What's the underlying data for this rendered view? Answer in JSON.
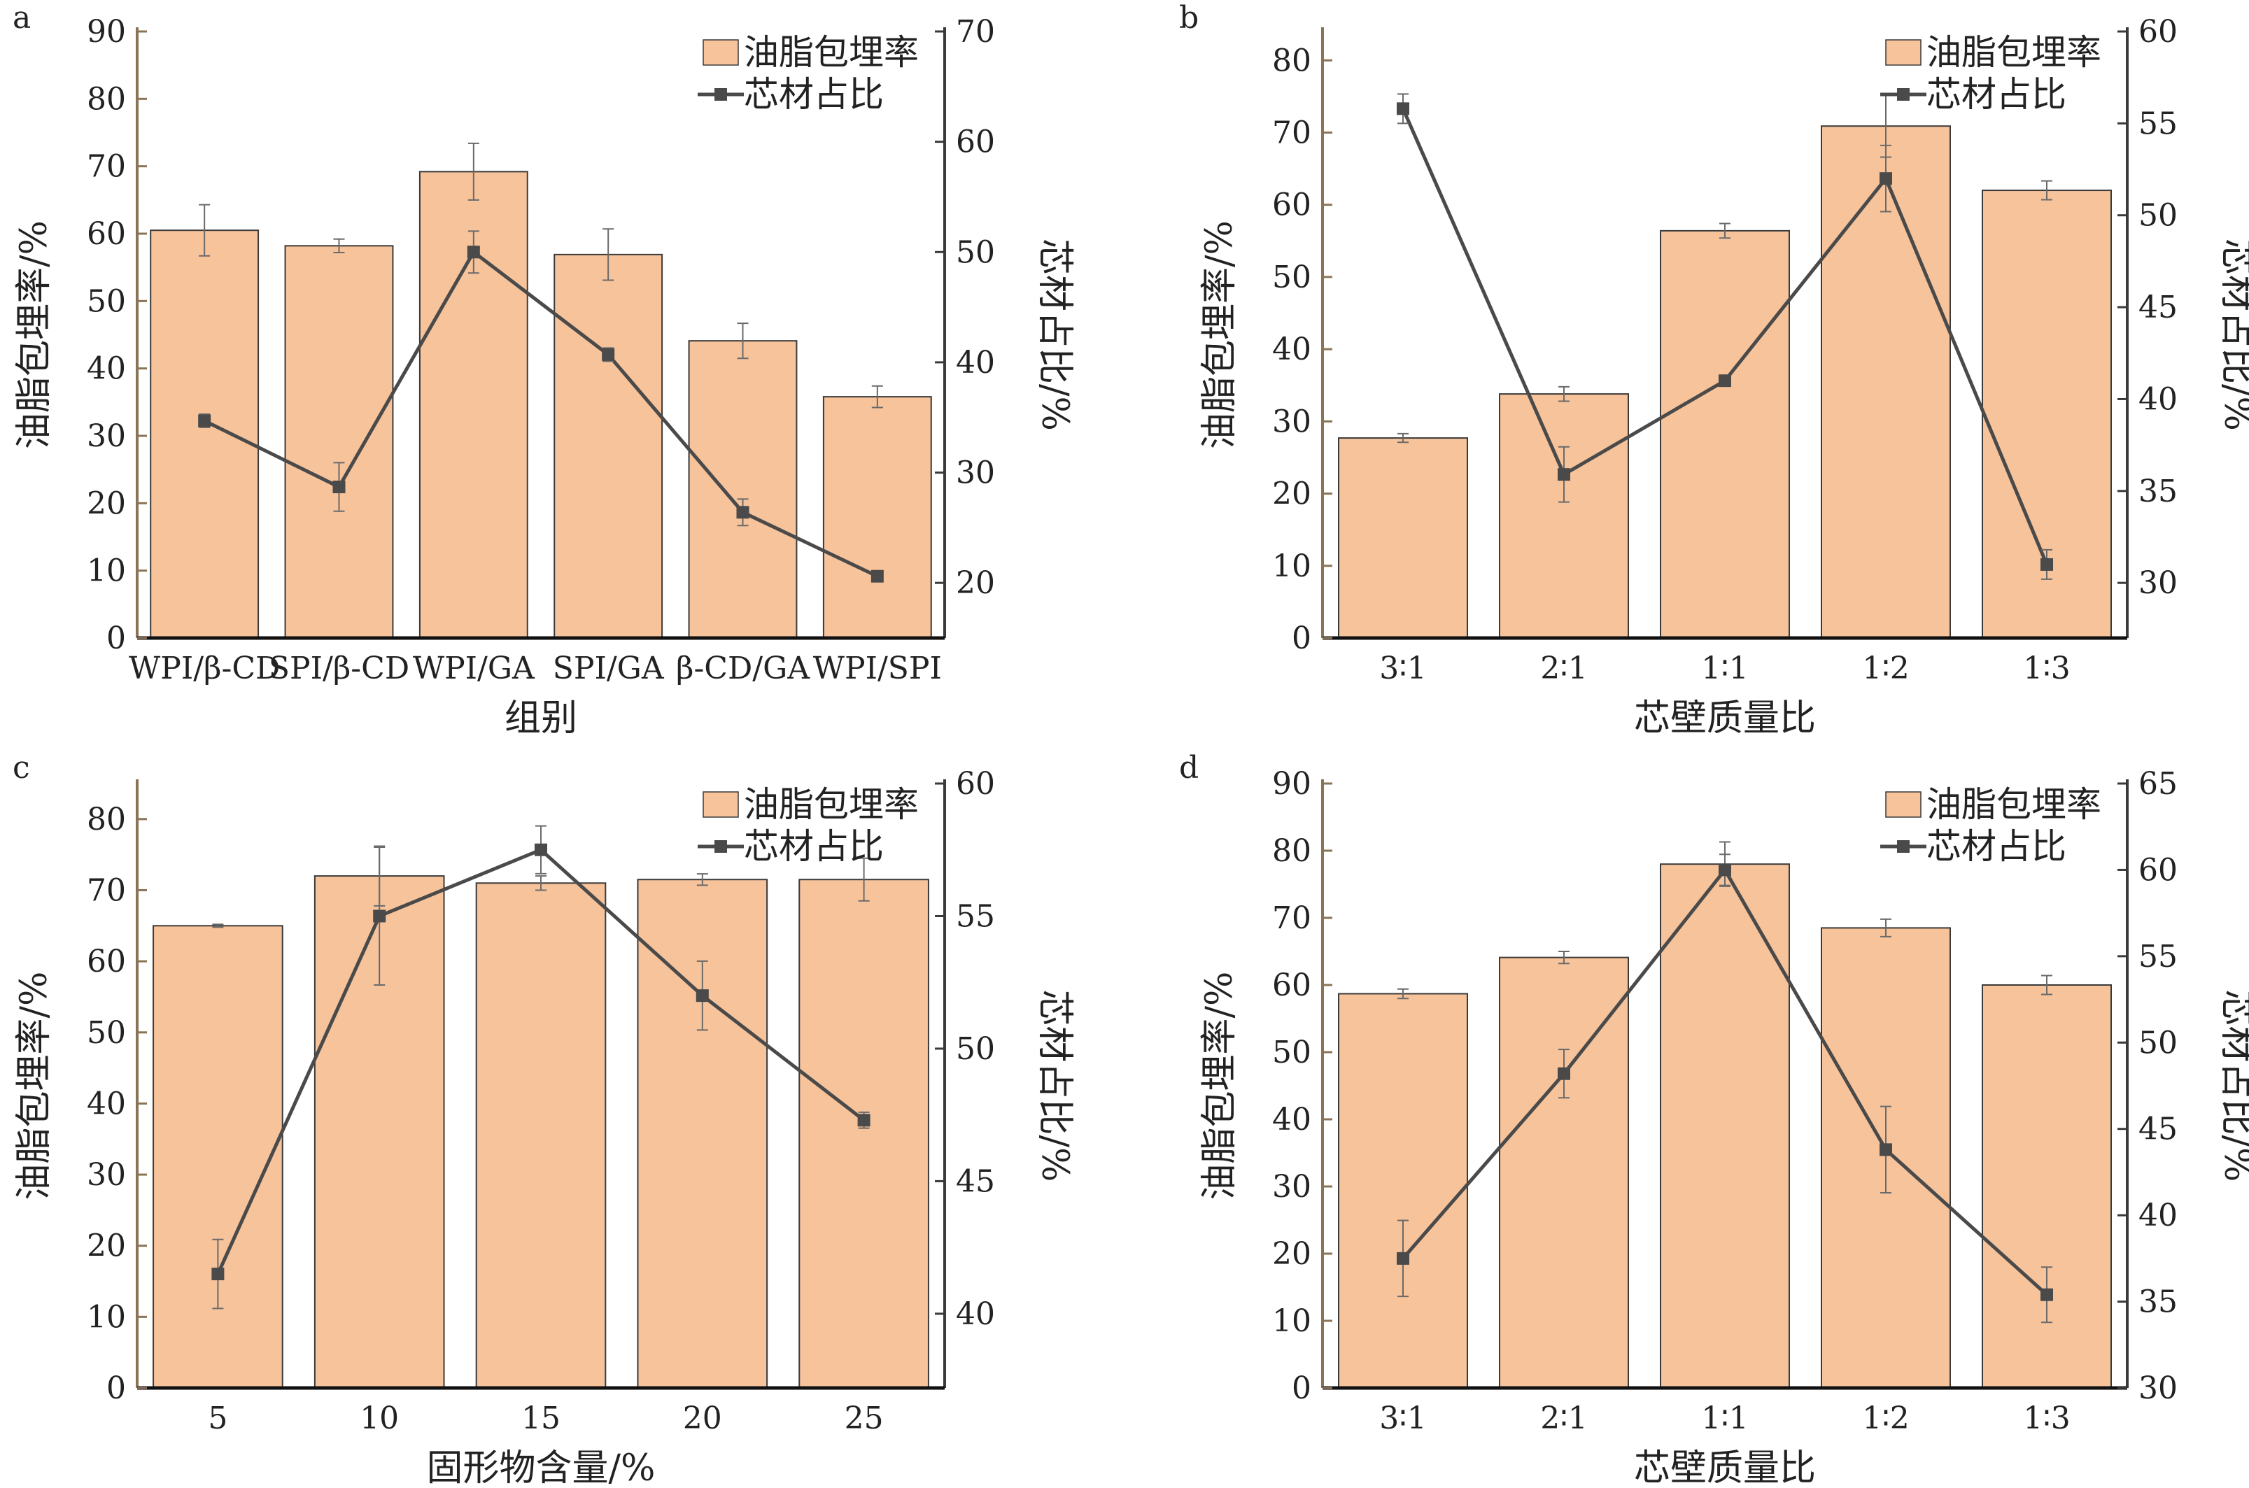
{
  "chart_data": [
    {
      "type": "bar",
      "panel_label": "a",
      "categories": [
        "WPI/β-CD",
        "SPI/β-CD",
        "WPI/GA",
        "SPI/GA",
        "β-CD/GA",
        "WPI/SPI"
      ],
      "series": [
        {
          "name": "油脂包埋率",
          "type": "bar",
          "axis": "left",
          "values": [
            60.5,
            58.2,
            69.2,
            56.9,
            44.1,
            35.8
          ],
          "errors": [
            3.8,
            1.0,
            4.2,
            3.8,
            2.6,
            1.6
          ]
        },
        {
          "name": "芯材占比",
          "type": "line",
          "axis": "right",
          "values": [
            34.7,
            28.7,
            50.0,
            40.7,
            26.4,
            20.6
          ],
          "errors": [
            0.6,
            2.2,
            1.9,
            0.6,
            1.2,
            0.0
          ]
        }
      ],
      "xlabel": "组别",
      "ylabel": "油脂包埋率/%",
      "y2label": "芯材占比/%",
      "ylim": [
        0,
        90
      ],
      "yticks": [
        0,
        10,
        20,
        30,
        40,
        50,
        60,
        70,
        80,
        90
      ],
      "y2lim": [
        15,
        70
      ],
      "y2ticks": [
        20,
        30,
        40,
        50,
        60,
        70
      ],
      "legend": "top-right",
      "grid": false
    },
    {
      "type": "bar",
      "panel_label": "b",
      "categories": [
        "3∶1",
        "2∶1",
        "1∶1",
        "1∶2",
        "1∶3"
      ],
      "series": [
        {
          "name": "油脂包埋率",
          "type": "bar",
          "axis": "left",
          "values": [
            27.7,
            33.8,
            56.4,
            70.9,
            62.0
          ],
          "errors": [
            0.6,
            1.0,
            1.0,
            4.3,
            1.3
          ]
        },
        {
          "name": "芯材占比",
          "type": "line",
          "axis": "right",
          "values": [
            55.8,
            35.9,
            41.0,
            52.0,
            31.0
          ],
          "errors": [
            0.8,
            1.5,
            0.0,
            1.8,
            0.8
          ]
        }
      ],
      "xlabel": "芯壁质量比",
      "ylabel": "油脂包埋率/%",
      "y2label": "芯材占比/%",
      "ylim": [
        0,
        84
      ],
      "yticks": [
        0,
        10,
        20,
        30,
        40,
        50,
        60,
        70,
        80
      ],
      "y2lim": [
        27,
        60
      ],
      "y2ticks": [
        30,
        35,
        40,
        45,
        50,
        55,
        60
      ],
      "legend": "top-right",
      "grid": false
    },
    {
      "type": "bar",
      "panel_label": "c",
      "categories": [
        "5",
        "10",
        "15",
        "20",
        "25"
      ],
      "series": [
        {
          "name": "油脂包埋率",
          "type": "bar",
          "axis": "left",
          "values": [
            65.0,
            72.0,
            71.0,
            71.5,
            71.5
          ],
          "errors": [
            0.2,
            4.2,
            1.0,
            0.8,
            3.0
          ]
        },
        {
          "name": "芯材占比",
          "type": "line",
          "axis": "right",
          "values": [
            41.5,
            55.0,
            57.5,
            52.0,
            47.3
          ],
          "errors": [
            1.3,
            2.6,
            0.9,
            1.3,
            0.3
          ]
        }
      ],
      "xlabel": "固形物含量/%",
      "ylabel": "油脂包埋率/%",
      "y2label": "芯材占比/%",
      "ylim": [
        0,
        85
      ],
      "yticks": [
        0,
        10,
        20,
        30,
        40,
        50,
        60,
        70,
        80
      ],
      "y2lim": [
        37.2,
        60
      ],
      "y2ticks": [
        40,
        45,
        50,
        55,
        60
      ],
      "legend": "top-right",
      "grid": false
    },
    {
      "type": "bar",
      "panel_label": "d",
      "categories": [
        "3∶1",
        "2∶1",
        "1∶1",
        "1∶2",
        "1∶3"
      ],
      "series": [
        {
          "name": "油脂包埋率",
          "type": "bar",
          "axis": "left",
          "values": [
            58.7,
            64.1,
            78.0,
            68.5,
            60.0
          ],
          "errors": [
            0.7,
            0.9,
            3.3,
            1.3,
            1.4
          ]
        },
        {
          "name": "芯材占比",
          "type": "line",
          "axis": "right",
          "values": [
            37.5,
            48.2,
            60.0,
            43.8,
            35.4
          ],
          "errors": [
            2.2,
            1.4,
            0.9,
            2.5,
            1.6
          ]
        }
      ],
      "xlabel": "芯壁质量比",
      "ylabel": "油脂包埋率/%",
      "y2label": "芯材占比/%",
      "ylim": [
        0,
        90
      ],
      "yticks": [
        0,
        10,
        20,
        30,
        40,
        50,
        60,
        70,
        80,
        90
      ],
      "y2lim": [
        30,
        65
      ],
      "y2ticks": [
        30,
        35,
        40,
        45,
        50,
        55,
        60,
        65
      ],
      "legend": "top-right",
      "grid": false
    }
  ],
  "colors": {
    "bar_fill": "#f7c39b",
    "bar_edge": "#3a3a3a",
    "line": "#4a4a4a",
    "left_axis": "#8a7456",
    "right_axis": "#3a3a3a",
    "bottom_axis": "#111111"
  }
}
